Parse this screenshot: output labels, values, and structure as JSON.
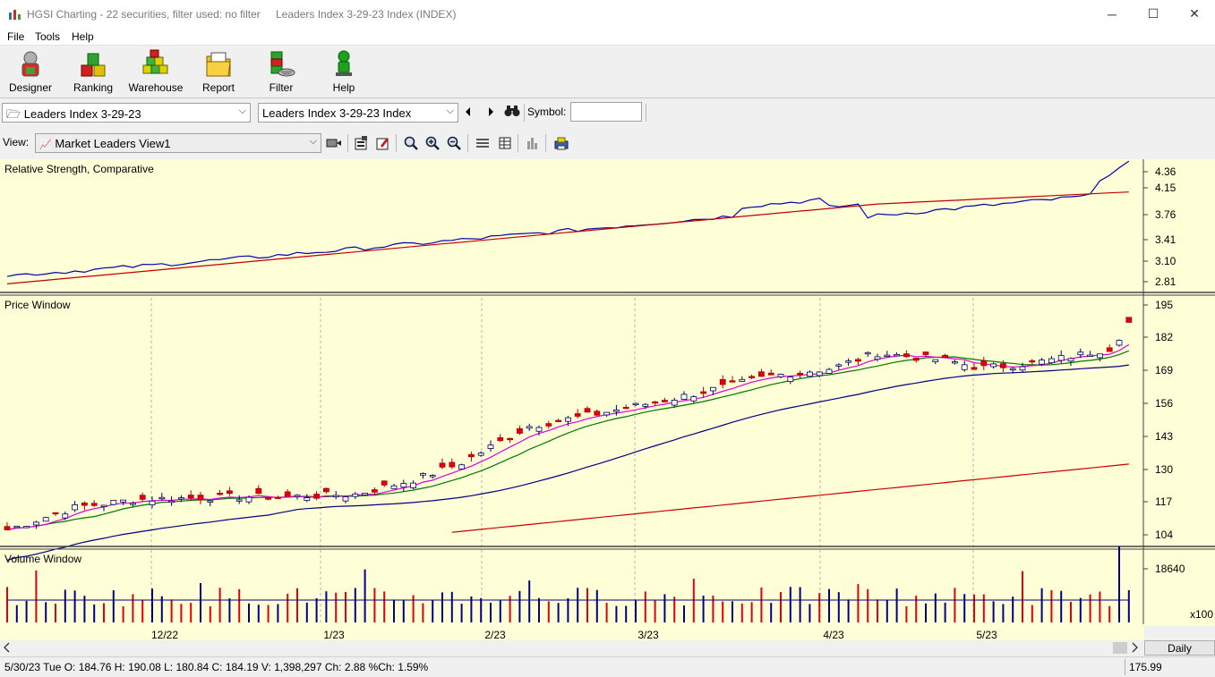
{
  "window": {
    "app_title": "HGSI Charting - 22 securities, filter used: no filter",
    "doc_title": "Leaders Index 3-29-23 Index (INDEX)",
    "minimize_glyph": "─",
    "maximize_glyph": "☐",
    "close_glyph": "✕"
  },
  "menu": [
    "File",
    "Tools",
    "Help"
  ],
  "toolbar": [
    {
      "label": "Designer",
      "icon": "designer-icon"
    },
    {
      "label": "Ranking",
      "icon": "ranking-icon"
    },
    {
      "label": "Warehouse",
      "icon": "warehouse-icon"
    },
    {
      "label": "Report",
      "icon": "report-icon"
    },
    {
      "label": "Filter",
      "icon": "filter-icon"
    },
    {
      "label": "Help",
      "icon": "help-icon"
    }
  ],
  "selectors": {
    "list_combo": "Leaders Index 3-29-23",
    "security_combo": "Leaders Index 3-29-23 Index",
    "symbol_label": "Symbol:",
    "symbol_value": ""
  },
  "view": {
    "label": "View:",
    "selected": "Market Leaders View1"
  },
  "panes": {
    "rs_title": "Relative Strength, Comparative",
    "price_title": "Price Window",
    "volume_title": "Volume Window",
    "rs_ticks": [
      "4.36",
      "4.15",
      "3.76",
      "3.41",
      "3.10",
      "2.81"
    ],
    "price_ticks": [
      "195",
      "182",
      "169",
      "156",
      "143",
      "130",
      "117",
      "104"
    ],
    "volume_ticks": [
      "18640"
    ],
    "volume_unit": "x100",
    "date_labels": [
      "12/22",
      "1/23",
      "2/23",
      "3/23",
      "4/23",
      "5/23"
    ]
  },
  "colors": {
    "chart_bg": "#ffffd7",
    "rs_line": "#0000aa",
    "rs_avg": "#c00000",
    "ma_magenta": "#dd00dd",
    "ma_green": "#007700",
    "ma_blue": "#000080",
    "ma_red": "#cc0000",
    "up_candle": "#ffffff",
    "down_candle": "#e00010"
  },
  "period": "Daily",
  "status": {
    "text": "5/30/23 Tue O: 184.76 H: 190.08 L: 180.84 C: 184.19 V: 1,398,297 Ch: 2.88 %Ch: 1.59%",
    "value": "175.99"
  }
}
